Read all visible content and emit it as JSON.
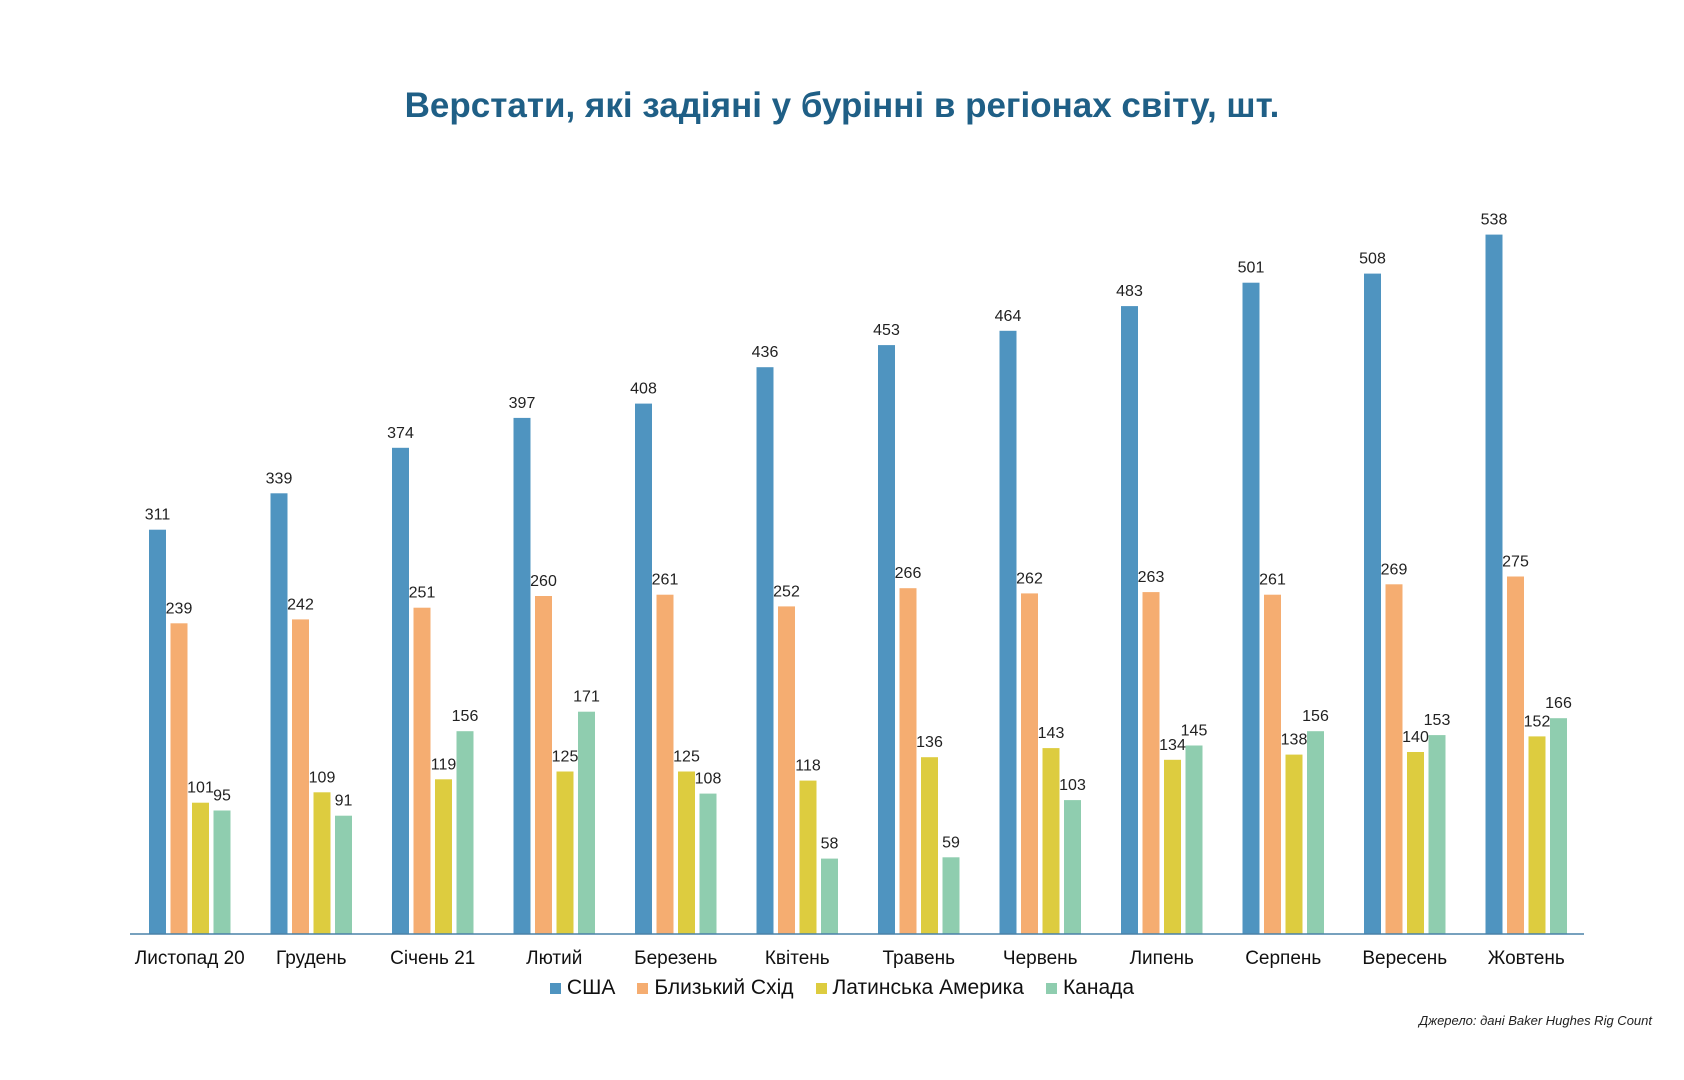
{
  "chart_data": {
    "type": "bar",
    "title": "Верстати, які задіяні у бурінні в регіонах світу, шт.",
    "categories": [
      "Листопад 20",
      "Грудень",
      "Січень 21",
      "Лютий",
      "Березень",
      "Квітень",
      "Травень",
      "Червень",
      "Липень",
      "Серпень",
      "Вересень",
      "Жовтень"
    ],
    "series": [
      {
        "name": "США",
        "color": "#4f94c0",
        "values": [
          311,
          339,
          374,
          397,
          408,
          436,
          453,
          464,
          483,
          501,
          508,
          538
        ]
      },
      {
        "name": "Близький Схід",
        "color": "#f5ad71",
        "values": [
          239,
          242,
          251,
          260,
          261,
          252,
          266,
          262,
          263,
          261,
          269,
          275
        ]
      },
      {
        "name": "Латинська Америка",
        "color": "#ddcc3f",
        "values": [
          101,
          109,
          119,
          125,
          125,
          118,
          136,
          143,
          134,
          138,
          140,
          152
        ]
      },
      {
        "name": "Канада",
        "color": "#8fcdaf",
        "values": [
          95,
          91,
          156,
          171,
          108,
          58,
          59,
          103,
          145,
          156,
          153,
          166
        ]
      }
    ],
    "ylim": [
      0,
      580
    ],
    "grid": false,
    "legend_position": "bottom",
    "source": "Джерело: дані Baker Hughes Rig Count"
  }
}
